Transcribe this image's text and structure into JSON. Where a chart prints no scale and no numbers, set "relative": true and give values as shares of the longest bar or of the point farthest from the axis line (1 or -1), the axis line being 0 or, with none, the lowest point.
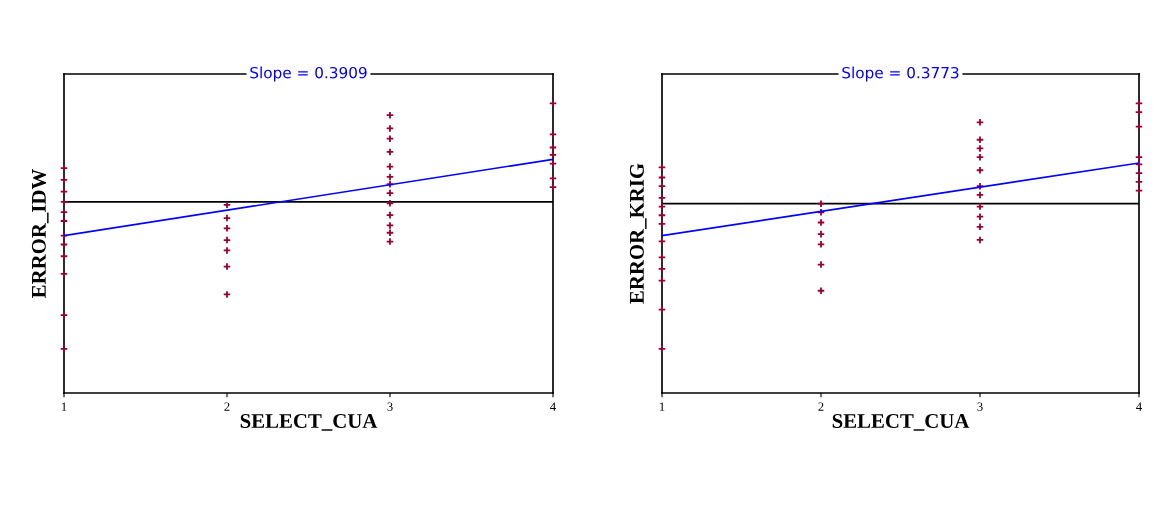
{
  "chart_data": [
    {
      "type": "scatter",
      "relative": true,
      "xlabel": "SELECT_CUA",
      "ylabel": "ERROR_IDW",
      "annotations": [
        "Slope = 0.3909"
      ],
      "xlim": [
        1,
        4
      ],
      "xticks": [
        1,
        2,
        3,
        4
      ],
      "marker": "cross",
      "grid": false,
      "legend": false,
      "ref_lines": [
        {
          "axis": "y",
          "value": 0,
          "color": "#000000"
        }
      ],
      "series": [
        {
          "color": "#990033",
          "x": [
            1,
            1,
            1,
            1,
            1,
            1,
            1,
            1,
            1,
            1,
            1,
            1,
            2,
            2,
            2,
            2,
            2,
            2,
            2,
            3,
            3,
            3,
            3,
            3,
            3,
            3,
            3,
            3,
            3,
            3,
            3,
            3,
            4,
            4,
            4,
            4,
            4,
            4,
            4
          ],
          "values": [
            0.23,
            0.15,
            0.07,
            0,
            -0.07,
            -0.13,
            -0.23,
            -0.29,
            -0.37,
            -0.49,
            -0.77,
            -1,
            -0.02,
            -0.11,
            -0.18,
            -0.26,
            -0.33,
            -0.44,
            -0.63,
            0.59,
            0.5,
            0.43,
            0.34,
            0.24,
            0.17,
            0.12,
            0.06,
            -0.01,
            -0.09,
            -0.16,
            -0.21,
            -0.27,
            0.67,
            0.46,
            0.37,
            0.32,
            0.26,
            0.16,
            0.1
          ]
        },
        {
          "type": "line",
          "color": "#0000ff",
          "x": [
            1,
            4
          ],
          "values": [
            -0.23,
            0.29
          ],
          "marker": "none"
        }
      ]
    },
    {
      "type": "scatter",
      "relative": true,
      "xlabel": "SELECT_CUA",
      "ylabel": "ERROR_KRIG",
      "annotations": [
        "Slope = 0.3773"
      ],
      "xlim": [
        1,
        4
      ],
      "xticks": [
        1,
        2,
        3,
        4
      ],
      "marker": "cross",
      "grid": false,
      "legend": false,
      "ref_lines": [
        {
          "axis": "y",
          "value": 0,
          "color": "#000000"
        }
      ],
      "series": [
        {
          "color": "#990033",
          "x": [
            1,
            1,
            1,
            1,
            1,
            1,
            1,
            1,
            1,
            1,
            1,
            1,
            1,
            2,
            2,
            2,
            2,
            2,
            2,
            2,
            3,
            3,
            3,
            3,
            3,
            3,
            3,
            3,
            3,
            3,
            3,
            4,
            4,
            4,
            4,
            4,
            4,
            4,
            4
          ],
          "values": [
            0.25,
            0.18,
            0.12,
            0.04,
            -0.02,
            -0.08,
            -0.14,
            -0.26,
            -0.37,
            -0.45,
            -0.53,
            -0.73,
            -1,
            0,
            -0.06,
            -0.13,
            -0.21,
            -0.28,
            -0.42,
            -0.6,
            0.56,
            0.44,
            0.38,
            0.32,
            0.23,
            0.12,
            0.06,
            -0.02,
            -0.09,
            -0.16,
            -0.25,
            0.69,
            0.63,
            0.53,
            0.32,
            0.27,
            0.21,
            0.15,
            0.09
          ]
        },
        {
          "type": "line",
          "color": "#0000ff",
          "x": [
            1,
            4
          ],
          "values": [
            -0.22,
            0.28
          ],
          "marker": "none"
        }
      ]
    }
  ]
}
